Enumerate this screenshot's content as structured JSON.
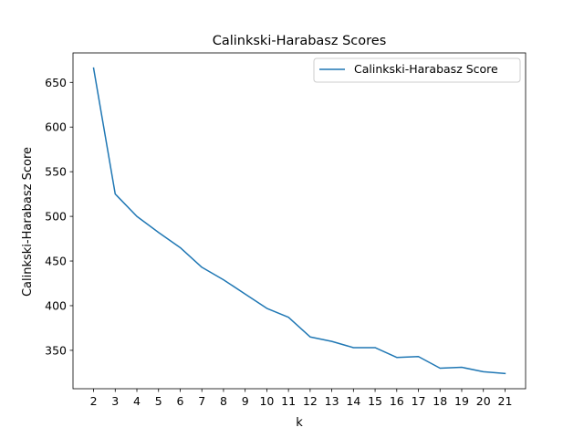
{
  "chart_data": {
    "type": "line",
    "title": "Calinkski-Harabasz Scores",
    "xlabel": "k",
    "ylabel": "Calinkski-Harabasz Score",
    "x": [
      2,
      3,
      4,
      5,
      6,
      7,
      8,
      9,
      10,
      11,
      12,
      13,
      14,
      15,
      16,
      17,
      18,
      19,
      20,
      21
    ],
    "series": [
      {
        "name": "Calinkski-Harabasz Score",
        "color": "#1f77b4",
        "values": [
          666,
          525,
          500,
          482,
          465,
          443,
          429,
          413,
          397,
          387,
          365,
          360,
          353,
          353,
          342,
          343,
          330,
          331,
          326,
          324
        ]
      }
    ],
    "xticks": [
      2,
      3,
      4,
      5,
      6,
      7,
      8,
      9,
      10,
      11,
      12,
      13,
      14,
      15,
      16,
      17,
      18,
      19,
      20,
      21
    ],
    "yticks": [
      350,
      400,
      450,
      500,
      550,
      600,
      650
    ],
    "xlim": [
      1.05,
      21.95
    ],
    "ylim": [
      307,
      683
    ],
    "grid": false,
    "legend_position": "top-right"
  }
}
